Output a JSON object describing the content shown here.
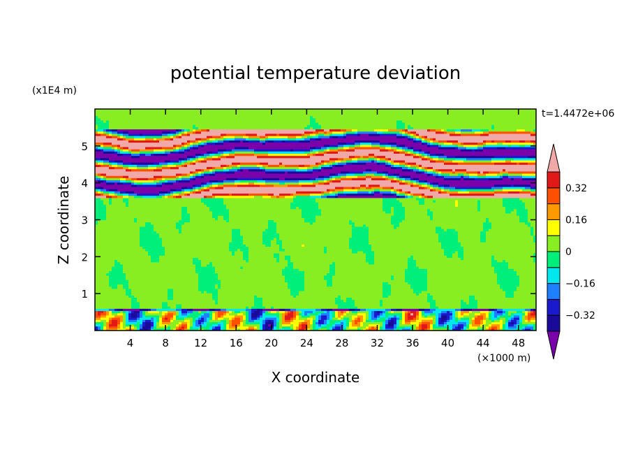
{
  "chart_data": {
    "type": "heatmap",
    "title": "potential temperature deviation",
    "xlabel": "X coordinate",
    "ylabel": "Z coordinate",
    "x_unit": "(×1000 m)",
    "y_unit": "(x1E4 m)",
    "time_label": "t=1.4472e+06",
    "xlim": [
      0,
      50
    ],
    "ylim": [
      0,
      6
    ],
    "x_ticks": [
      4,
      8,
      12,
      16,
      20,
      24,
      28,
      32,
      36,
      40,
      44,
      48
    ],
    "y_ticks": [
      1,
      2,
      3,
      4,
      5
    ],
    "colorbar": {
      "levels": [
        -0.4,
        -0.32,
        -0.24,
        -0.16,
        -0.08,
        0,
        0.08,
        0.16,
        0.24,
        0.32,
        0.4
      ],
      "tick_labels": [
        "0.32",
        "0.16",
        "0",
        "−0.16",
        "−0.32"
      ],
      "tick_values": [
        0.32,
        0.16,
        0,
        -0.16,
        -0.32
      ],
      "colors": [
        "#7a00aa",
        "#1a0a9a",
        "#1a1acc",
        "#1e7fff",
        "#00e8ee",
        "#00ee7a",
        "#88ee22",
        "#ffff00",
        "#ff9900",
        "#ff5000",
        "#e01818",
        "#f0a8a8"
      ]
    },
    "layers": [
      {
        "z_range": [
          0,
          0.6
        ],
        "description_level": "mixed strong"
      },
      {
        "z_range": [
          0.6,
          3.6
        ],
        "dominant_value": 0
      },
      {
        "z_range": [
          3.6,
          5.4
        ],
        "description_level": "alternating strong bands"
      },
      {
        "z_range": [
          5.4,
          6
        ],
        "dominant_value": 0
      }
    ]
  }
}
